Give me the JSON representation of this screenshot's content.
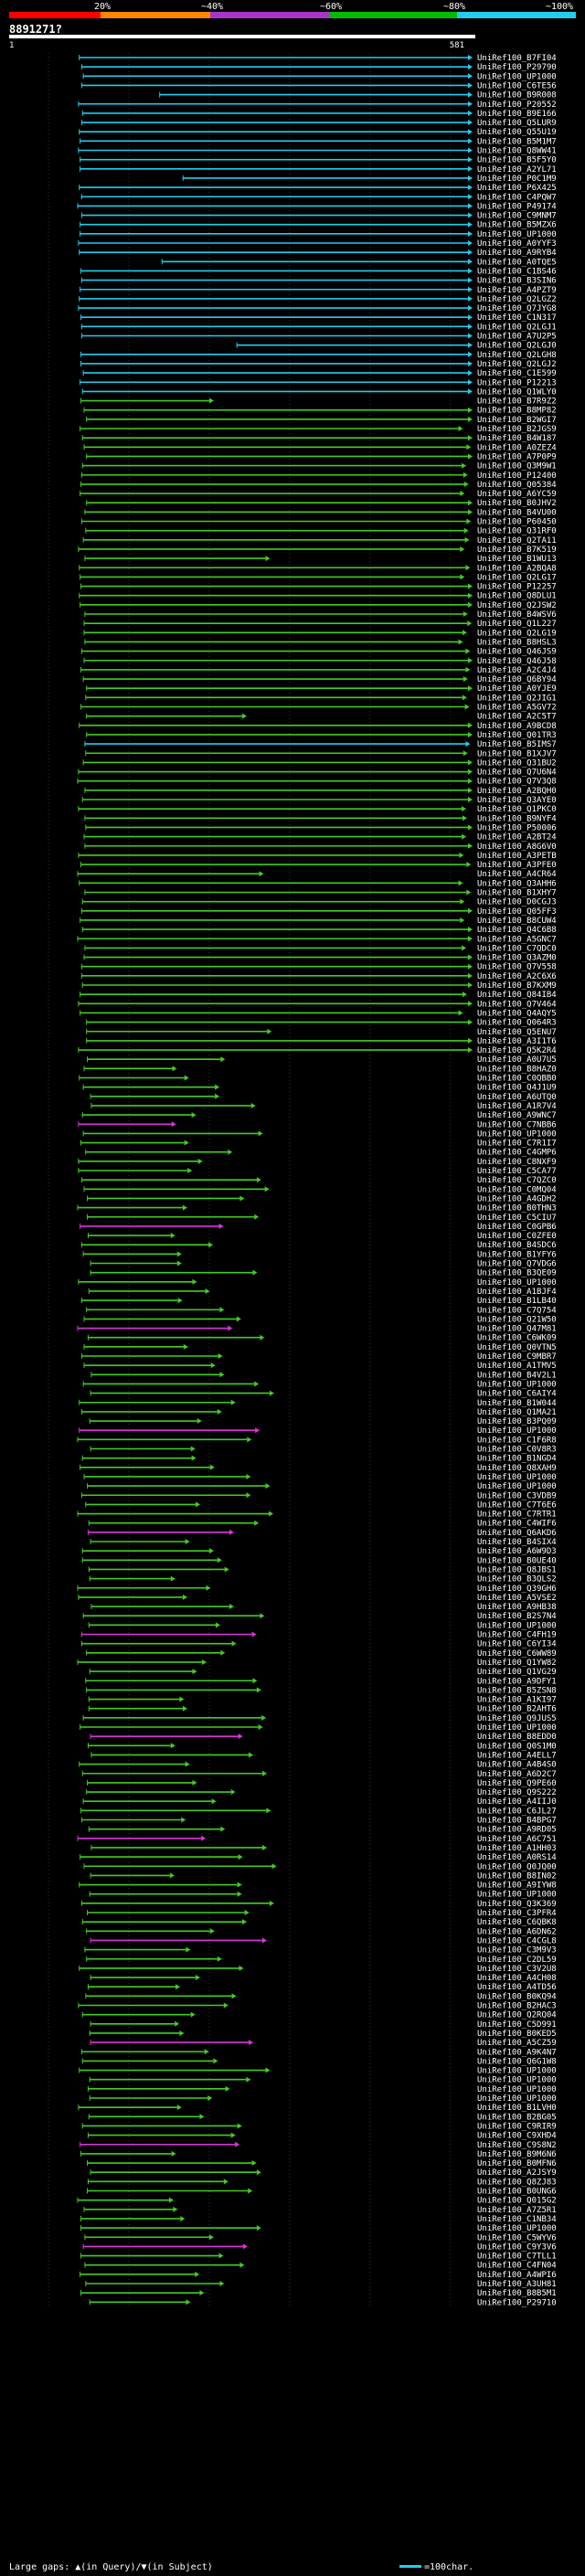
{
  "header": {
    "query_id": "8891271?",
    "query_start": "1",
    "query_end": "581"
  },
  "legend_bar": {
    "labels": [
      "20%",
      "~40%",
      "~60%",
      "~80%",
      "~100%"
    ],
    "colors": [
      "#ff0000",
      "#ff8800",
      "#aa33cc",
      "#00bb00",
      "#22ccee"
    ]
  },
  "colors": {
    "high": "#22ccee",
    "mid": "#44cc22",
    "low": "#dd33dd",
    "bg": "#000000",
    "axis": "#ffffff"
  },
  "footer": {
    "gap_text": "Large gaps: ▲(in Query)/▼(in Subject)",
    "scale_text": "=100char."
  },
  "chart_data": {
    "type": "alignment-overview",
    "x_range": [
      1,
      581
    ],
    "hits": []
  }
}
